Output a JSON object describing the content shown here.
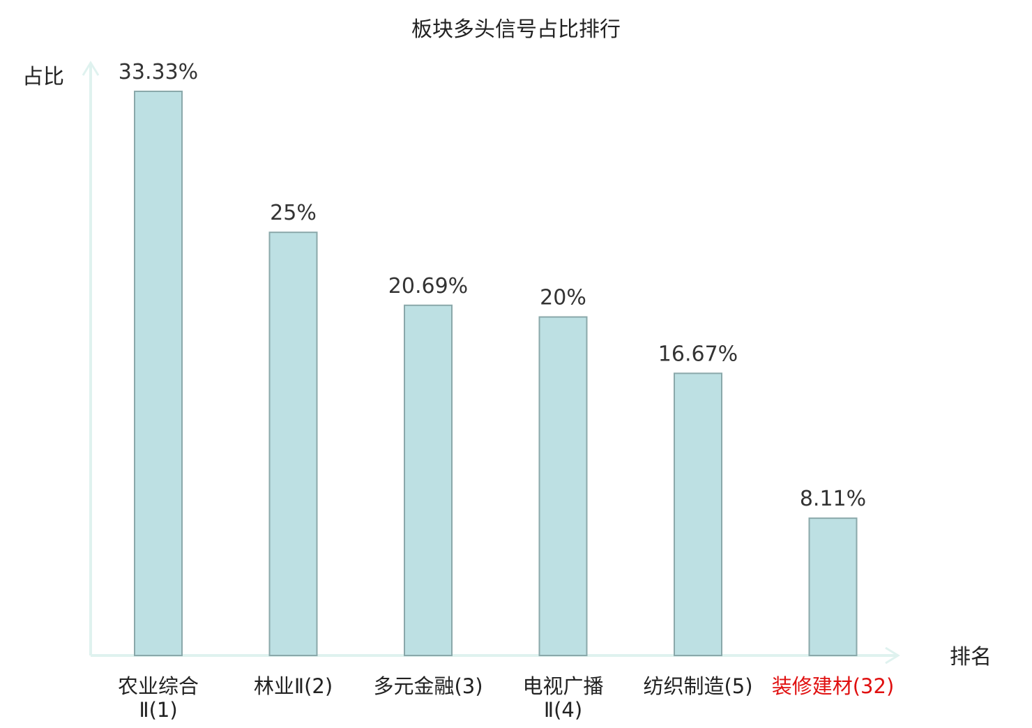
{
  "chart_data": {
    "type": "bar",
    "title": "板块多头信号占比排行",
    "xlabel": "排名",
    "ylabel": "占比",
    "ylim": [
      0,
      35
    ],
    "grid": false,
    "legend": "none",
    "categories": [
      [
        "农业综合",
        "Ⅱ(1)"
      ],
      [
        "林业Ⅱ(2)"
      ],
      [
        "多元金融(3)"
      ],
      [
        "电视广播",
        "Ⅱ(4)"
      ],
      [
        "纺织制造(5)"
      ],
      [
        "装修建材(32)"
      ]
    ],
    "values": [
      33.33,
      25,
      20.69,
      20,
      16.67,
      8.11
    ],
    "value_labels": [
      "33.33%",
      "25%",
      "20.69%",
      "20%",
      "16.67%",
      "8.11%"
    ],
    "highlight_index": 5,
    "colors": {
      "bar_fill": "#bde0e3",
      "bar_stroke": "#8aa8aa",
      "axis": "#dff2ef",
      "text": "#333333",
      "label": "#222222",
      "highlight": "#e01010"
    }
  }
}
